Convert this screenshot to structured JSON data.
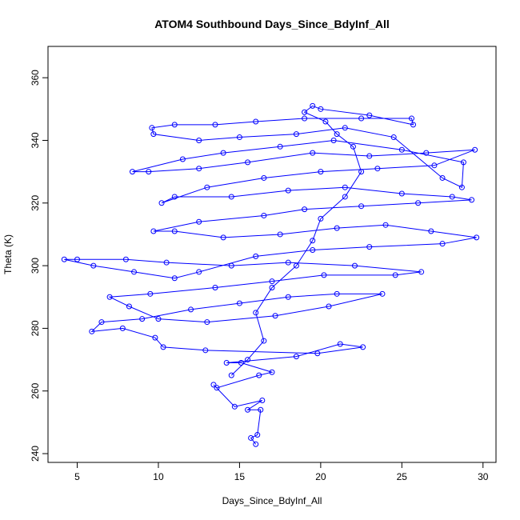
{
  "chart_data": {
    "type": "line",
    "markers": true,
    "color": "#0000ff",
    "title": "ATOM4 Southbound Days_Since_BdyInf_All",
    "x_label": "Days_Since_BdyInf_All",
    "y_label": "Theta (K)",
    "xlim": [
      3.2,
      30.8
    ],
    "ylim": [
      237.2,
      370
    ],
    "xticks": [
      5,
      10,
      15,
      20,
      25,
      30
    ],
    "yticks": [
      240,
      260,
      280,
      300,
      320,
      340,
      360
    ],
    "x": [
      16.0,
      15.7,
      16.1,
      16.3,
      15.5,
      16.4,
      14.7,
      13.4,
      13.6,
      16.2,
      17.0,
      15.1,
      14.2,
      18.5,
      21.2,
      22.6,
      19.8,
      12.9,
      10.3,
      9.8,
      7.8,
      5.9,
      6.5,
      9.0,
      12.0,
      15.0,
      18.0,
      21.0,
      23.8,
      20.5,
      17.2,
      13.0,
      10.0,
      8.2,
      7.0,
      9.5,
      13.5,
      17.0,
      20.2,
      24.6,
      26.2,
      22.1,
      18.0,
      14.5,
      10.5,
      8.0,
      5.0,
      4.2,
      6.0,
      8.5,
      11.0,
      12.5,
      16.0,
      19.5,
      23.0,
      27.5,
      29.6,
      26.8,
      24.0,
      21.0,
      17.5,
      14.0,
      11.0,
      9.7,
      12.5,
      16.5,
      19.0,
      22.5,
      26.0,
      29.3,
      28.1,
      25.0,
      21.5,
      18.0,
      14.5,
      11.0,
      10.2,
      13.0,
      16.5,
      20.0,
      23.5,
      27.0,
      29.5,
      26.5,
      23.0,
      19.5,
      15.5,
      12.5,
      9.4,
      8.4,
      11.5,
      14.0,
      17.5,
      20.8,
      25.0,
      28.8,
      28.7,
      27.5,
      24.5,
      21.5,
      18.5,
      15.0,
      12.5,
      9.7,
      9.6,
      11.0,
      13.5,
      16.0,
      19.0,
      22.5,
      25.6,
      25.7,
      23.0,
      20.0,
      19.5,
      19.0,
      20.3,
      21.0,
      22.0,
      22.5,
      21.5,
      20.0,
      19.5,
      18.5,
      17.0,
      16.0,
      16.5,
      15.5,
      14.5
    ],
    "values": [
      243,
      245,
      246,
      254,
      254,
      257,
      255,
      262,
      261,
      265,
      266,
      269,
      269,
      271,
      275,
      274,
      272,
      273,
      274,
      277,
      280,
      279,
      282,
      283,
      286,
      288,
      290,
      291,
      291,
      287,
      284,
      282,
      283,
      287,
      290,
      291,
      293,
      295,
      297,
      297,
      298,
      300,
      301,
      300,
      301,
      302,
      302,
      302,
      300,
      298,
      296,
      298,
      303,
      305,
      306,
      307,
      309,
      311,
      313,
      312,
      310,
      309,
      311,
      311,
      314,
      316,
      318,
      319,
      320,
      321,
      322,
      323,
      325,
      324,
      322,
      322,
      320,
      325,
      328,
      330,
      331,
      332,
      337,
      336,
      335,
      336,
      333,
      331,
      330,
      330,
      334,
      336,
      338,
      340,
      337,
      333,
      325,
      328,
      341,
      344,
      342,
      341,
      340,
      342,
      344,
      345,
      345,
      346,
      347,
      347,
      347,
      345,
      348,
      350,
      351,
      349,
      346,
      342,
      338,
      330,
      322,
      315,
      308,
      300,
      293,
      285,
      276,
      270,
      265
    ]
  }
}
